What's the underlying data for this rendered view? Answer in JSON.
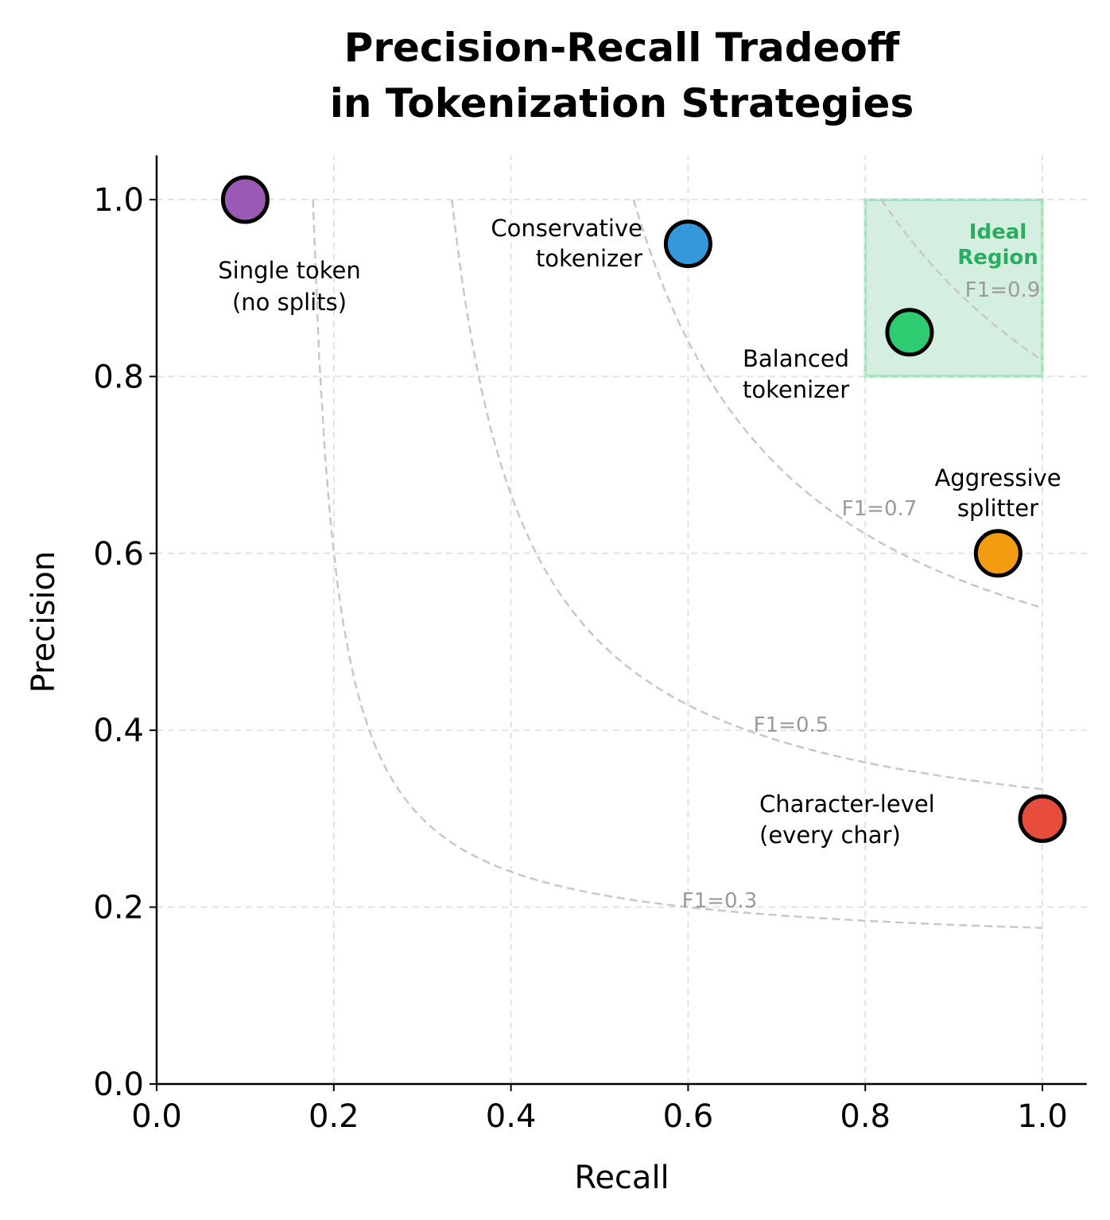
{
  "chart_data": {
    "type": "scatter",
    "title": [
      "Precision-Recall Tradeoff",
      "in Tokenization Strategies"
    ],
    "xlabel": "Recall",
    "ylabel": "Precision",
    "xlim": [
      0,
      1.05
    ],
    "ylim": [
      0,
      1.05
    ],
    "grid": true,
    "xticks": [
      "0.0",
      "0.2",
      "0.4",
      "0.6",
      "0.8",
      "1.0"
    ],
    "yticks": [
      "0.0",
      "0.2",
      "0.4",
      "0.6",
      "0.8",
      "1.0"
    ],
    "points": [
      {
        "label": [
          "Single token",
          "(no splits)"
        ],
        "recall": 0.1,
        "precision": 1.0,
        "color": "#9b59b6"
      },
      {
        "label": [
          "Conservative",
          "tokenizer"
        ],
        "recall": 0.6,
        "precision": 0.95,
        "color": "#3498db"
      },
      {
        "label": [
          "Balanced",
          "tokenizer"
        ],
        "recall": 0.85,
        "precision": 0.85,
        "color": "#2ecc71"
      },
      {
        "label": [
          "Aggressive",
          "splitter"
        ],
        "recall": 0.95,
        "precision": 0.6,
        "color": "#f39c12"
      },
      {
        "label": [
          "Character-level",
          "(every char)"
        ],
        "recall": 1.0,
        "precision": 0.3,
        "color": "#e74c3c"
      }
    ],
    "f1_contours": [
      {
        "f1": 0.3,
        "label": "F1=0.3"
      },
      {
        "f1": 0.5,
        "label": "F1=0.5"
      },
      {
        "f1": 0.7,
        "label": "F1=0.7"
      },
      {
        "f1": 0.9,
        "label": "F1=0.9"
      }
    ],
    "ideal_region": {
      "recall": [
        0.8,
        1.0
      ],
      "precision": [
        0.8,
        1.0
      ],
      "label": [
        "Ideal",
        "Region"
      ],
      "color": "#27ae60"
    }
  }
}
